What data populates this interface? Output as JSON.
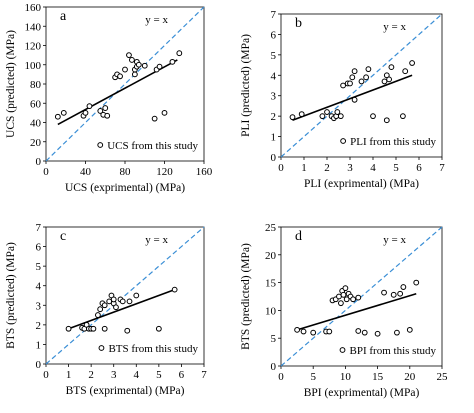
{
  "chart_data": [
    {
      "type": "scatter",
      "panel_label": "a",
      "annotation": "y = x",
      "xlabel": "UCS (exprimental) (MPa)",
      "ylabel": "UCS (predicted) (MPa)",
      "xlim": [
        0,
        160
      ],
      "ylim": [
        0,
        160
      ],
      "xticks": [
        0,
        40,
        80,
        120,
        160
      ],
      "yticks": [
        0,
        20,
        40,
        60,
        80,
        100,
        120,
        140,
        160
      ],
      "legend": "UCS from this study",
      "legend_position": "bottom-right",
      "trendline": [
        [
          12,
          38
        ],
        [
          133,
          105
        ]
      ],
      "identity_line": [
        [
          0,
          0
        ],
        [
          160,
          160
        ]
      ],
      "points": [
        [
          12,
          46
        ],
        [
          18,
          50
        ],
        [
          38,
          47
        ],
        [
          40,
          50
        ],
        [
          44,
          57
        ],
        [
          55,
          52
        ],
        [
          58,
          48
        ],
        [
          60,
          55
        ],
        [
          62,
          47
        ],
        [
          70,
          87
        ],
        [
          72,
          90
        ],
        [
          75,
          88
        ],
        [
          80,
          95
        ],
        [
          84,
          110
        ],
        [
          87,
          105
        ],
        [
          90,
          90
        ],
        [
          90,
          95
        ],
        [
          92,
          98
        ],
        [
          92,
          103
        ],
        [
          94,
          100
        ],
        [
          100,
          99
        ],
        [
          110,
          44
        ],
        [
          112,
          95
        ],
        [
          115,
          98
        ],
        [
          120,
          50
        ],
        [
          128,
          103
        ],
        [
          135,
          112
        ]
      ]
    },
    {
      "type": "scatter",
      "panel_label": "b",
      "annotation": "y = x",
      "xlabel": "PLI (exprimental) (MPa)",
      "ylabel": "PLI (predicted) (MPa)",
      "xlim": [
        0,
        7
      ],
      "ylim": [
        0,
        7
      ],
      "xticks": [
        0,
        1,
        2,
        3,
        4,
        5,
        6,
        7
      ],
      "yticks": [
        0,
        1,
        2,
        3,
        4,
        5,
        6,
        7
      ],
      "legend": "PLI from this study",
      "legend_position": "bottom-right",
      "trendline": [
        [
          0.5,
          1.8
        ],
        [
          5.7,
          4.0
        ]
      ],
      "identity_line": [
        [
          0,
          0
        ],
        [
          7,
          7
        ]
      ],
      "points": [
        [
          0.5,
          1.95
        ],
        [
          0.9,
          2.1
        ],
        [
          1.8,
          2.0
        ],
        [
          2.0,
          2.2
        ],
        [
          2.2,
          2.0
        ],
        [
          2.3,
          1.9
        ],
        [
          2.4,
          2.0
        ],
        [
          2.45,
          2.2
        ],
        [
          2.6,
          2.0
        ],
        [
          2.7,
          3.5
        ],
        [
          2.9,
          3.6
        ],
        [
          3.0,
          3.6
        ],
        [
          3.1,
          3.9
        ],
        [
          3.2,
          4.2
        ],
        [
          3.2,
          2.8
        ],
        [
          3.5,
          3.7
        ],
        [
          3.7,
          3.9
        ],
        [
          3.8,
          4.3
        ],
        [
          4.0,
          2.0
        ],
        [
          4.5,
          3.7
        ],
        [
          4.6,
          4.0
        ],
        [
          4.7,
          3.8
        ],
        [
          4.6,
          1.8
        ],
        [
          4.8,
          4.4
        ],
        [
          5.3,
          2.0
        ],
        [
          5.4,
          4.2
        ],
        [
          5.7,
          4.6
        ]
      ]
    },
    {
      "type": "scatter",
      "panel_label": "c",
      "annotation": "y = x",
      "xlabel": "BTS (exprimental) (MPa)",
      "ylabel": "BTS (predicted) (MPa)",
      "xlim": [
        0,
        7
      ],
      "ylim": [
        0,
        7
      ],
      "xticks": [
        0,
        1,
        2,
        3,
        4,
        5,
        6,
        7
      ],
      "yticks": [
        0,
        1,
        2,
        3,
        4,
        5,
        6,
        7
      ],
      "legend": "BTS from this study",
      "legend_position": "bottom-right",
      "trendline": [
        [
          1.0,
          1.8
        ],
        [
          5.7,
          3.8
        ]
      ],
      "identity_line": [
        [
          0,
          0
        ],
        [
          7,
          7
        ]
      ],
      "points": [
        [
          1.0,
          1.8
        ],
        [
          1.6,
          1.85
        ],
        [
          1.7,
          1.8
        ],
        [
          1.8,
          2.0
        ],
        [
          1.9,
          1.8
        ],
        [
          2.0,
          1.8
        ],
        [
          2.1,
          1.8
        ],
        [
          2.3,
          2.5
        ],
        [
          2.4,
          2.8
        ],
        [
          2.5,
          3.1
        ],
        [
          2.6,
          3.0
        ],
        [
          2.6,
          1.8
        ],
        [
          2.8,
          3.2
        ],
        [
          2.9,
          3.5
        ],
        [
          3.0,
          3.1
        ],
        [
          3.0,
          3.3
        ],
        [
          3.1,
          2.9
        ],
        [
          3.3,
          3.3
        ],
        [
          3.4,
          3.2
        ],
        [
          3.7,
          3.2
        ],
        [
          4.0,
          3.5
        ],
        [
          3.6,
          1.7
        ],
        [
          5.0,
          1.8
        ],
        [
          5.7,
          3.8
        ]
      ]
    },
    {
      "type": "scatter",
      "panel_label": "d",
      "annotation": "y = x",
      "xlabel": "BPI (exprimental) (MPa)",
      "ylabel": "BTS (predicted) (MPa)",
      "xlim": [
        0,
        25
      ],
      "ylim": [
        0,
        25
      ],
      "xticks": [
        0,
        5,
        10,
        15,
        20,
        25
      ],
      "yticks": [
        0,
        5,
        10,
        15,
        20,
        25
      ],
      "legend": "BPI from this study",
      "legend_position": "bottom-right",
      "trendline": [
        [
          2.5,
          6.5
        ],
        [
          21,
          13
        ]
      ],
      "identity_line": [
        [
          0,
          0
        ],
        [
          25,
          25
        ]
      ],
      "points": [
        [
          2.5,
          6.5
        ],
        [
          3.5,
          6.2
        ],
        [
          5.0,
          6.0
        ],
        [
          7.0,
          6.2
        ],
        [
          7.5,
          6.2
        ],
        [
          8.0,
          11.8
        ],
        [
          8.5,
          12.0
        ],
        [
          9.0,
          12.5
        ],
        [
          9.3,
          11.3
        ],
        [
          9.5,
          13.5
        ],
        [
          9.7,
          12.8
        ],
        [
          10.0,
          14.0
        ],
        [
          10.2,
          12.0
        ],
        [
          10.5,
          13.0
        ],
        [
          10.8,
          12.5
        ],
        [
          11.2,
          12.0
        ],
        [
          12.0,
          12.3
        ],
        [
          12.0,
          6.3
        ],
        [
          13.0,
          6.0
        ],
        [
          15.0,
          5.8
        ],
        [
          16.0,
          13.2
        ],
        [
          17.5,
          12.8
        ],
        [
          18.0,
          6.0
        ],
        [
          18.5,
          13.0
        ],
        [
          19.0,
          14.2
        ],
        [
          20.0,
          6.5
        ],
        [
          21.0,
          15.0
        ]
      ]
    }
  ]
}
